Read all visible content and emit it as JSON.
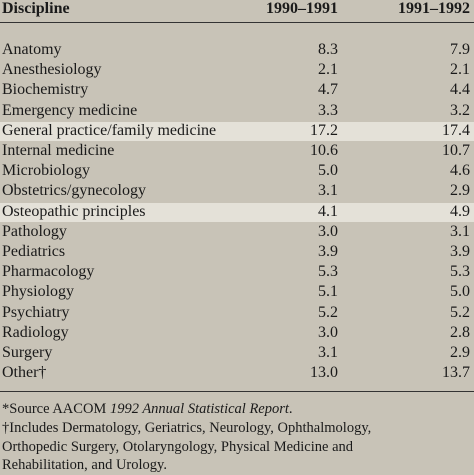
{
  "table": {
    "header": [
      "Discipline",
      "1990–1991",
      "1991–1992"
    ],
    "rows": [
      [
        "Anatomy",
        "8.3",
        "7.9"
      ],
      [
        "Anesthesiology",
        "2.1",
        "2.1"
      ],
      [
        "Biochemistry",
        "4.7",
        "4.4"
      ],
      [
        "Emergency medicine",
        "3.3",
        "3.2"
      ],
      [
        "General practice/family medicine",
        "17.2",
        "17.4"
      ],
      [
        "Internal medicine",
        "10.6",
        "10.7"
      ],
      [
        "Microbiology",
        "5.0",
        "4.6"
      ],
      [
        "Obstetrics/gynecology",
        "3.1",
        "2.9"
      ],
      [
        "Osteopathic principles",
        "4.1",
        "4.9"
      ],
      [
        "Pathology",
        "3.0",
        "3.1"
      ],
      [
        "Pediatrics",
        "3.9",
        "3.9"
      ],
      [
        "Pharmacology",
        "5.3",
        "5.3"
      ],
      [
        "Physiology",
        "5.1",
        "5.0"
      ],
      [
        "Psychiatry",
        "5.2",
        "5.2"
      ],
      [
        "Radiology",
        "3.0",
        "2.8"
      ],
      [
        "Surgery",
        "3.1",
        "2.9"
      ],
      [
        "Other†",
        "13.0",
        "13.7"
      ]
    ]
  },
  "footnotes": {
    "source": {
      "lead": "*Source AACOM ",
      "italic": "1992 Annual Statistical Report",
      "end": "."
    },
    "other": [
      "†Includes Dermatology, Geriatrics, Neurology, Ophthalmology,",
      "Orthopedic Surgery, Otolaryngology, Physical Medicine and",
      "Rehabilitation, and Urology."
    ]
  }
}
